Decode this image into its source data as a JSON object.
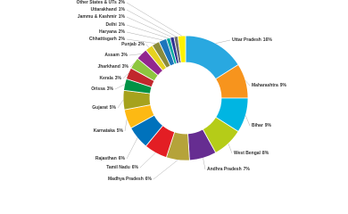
{
  "chart_data": {
    "type": "donut",
    "categories": [
      "Uttar Pradesh",
      "Maharashtra",
      "Bihar",
      "West Bengal",
      "Andhra Pradesh",
      "Madhya Pradesh",
      "Tamil Nadu",
      "Rajasthan",
      "Karnataka",
      "Gujarat",
      "Orissa",
      "Kerala",
      "Jharkhand",
      "Assam",
      "Punjab",
      "Chhattisgarh",
      "Haryana",
      "Delhi",
      "Jammu & Kashmir",
      "Uttarakhand",
      "Other States & UTs"
    ],
    "values": [
      16,
      9,
      9,
      8,
      7,
      6,
      6,
      6,
      5,
      5,
      3,
      3,
      3,
      3,
      2,
      2,
      2,
      1,
      1,
      1,
      2
    ],
    "value_labels": [
      "16%",
      "9%",
      "9%",
      "8%",
      "7%",
      "6%",
      "6%",
      "6%",
      "5%",
      "5%",
      "3%",
      "3%",
      "3%",
      "3%",
      "2%",
      "2%",
      "2%",
      "1%",
      "1%",
      "1%",
      "2%"
    ],
    "colors": [
      "#29a8e0",
      "#f7941d",
      "#00b5e2",
      "#b5cc18",
      "#662d91",
      "#b5a33a",
      "#e31e24",
      "#0072bc",
      "#fdb913",
      "#a6a21d",
      "#009245",
      "#c1272d",
      "#8dc63f",
      "#92278f",
      "#e6d21f",
      "#8c8c3a",
      "#1c75bc",
      "#00a99d",
      "#2e3192",
      "#6d6e71",
      "#fff200"
    ]
  }
}
